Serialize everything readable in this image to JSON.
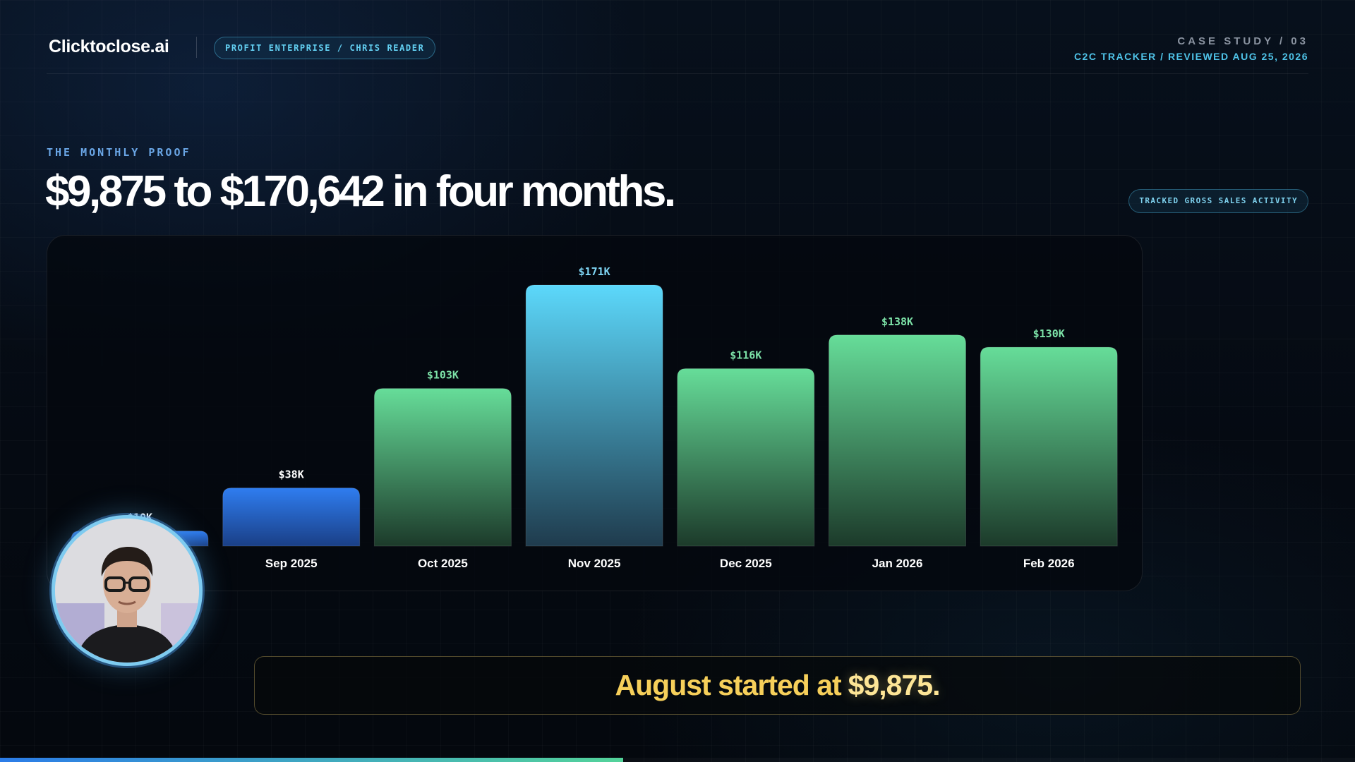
{
  "header": {
    "brand": "Clicktoclose.ai",
    "client_pill": "PROFIT ENTERPRISE / CHRIS READER",
    "case_label": "CASE STUDY / 03",
    "case_sub": "C2C TRACKER / REVIEWED AUG 25, 2026"
  },
  "hero": {
    "eyebrow": "THE MONTHLY PROOF",
    "headline": "$9,875 to $170,642 in four months.",
    "tag": "TRACKED GROSS SALES ACTIVITY"
  },
  "chart_data": {
    "type": "bar",
    "categories": [
      "",
      "Sep 2025",
      "Oct 2025",
      "Nov 2025",
      "Dec 2025",
      "Jan 2026",
      "Feb 2026"
    ],
    "values": [
      9875,
      38000,
      103000,
      170642,
      116000,
      138000,
      130000
    ],
    "value_labels": [
      "$10K",
      "$38K",
      "$103K",
      "$171K",
      "$116K",
      "$138K",
      "$130K"
    ],
    "bar_styles": [
      "blue",
      "blue",
      "green",
      "cyan",
      "green",
      "green",
      "green"
    ],
    "ylim": [
      0,
      170642
    ],
    "grid": false,
    "colors": {
      "blue_top": "#2f7df0",
      "blue_bottom": "#1a3f86",
      "green_top": "#66dd99",
      "green_bottom": "#1c3a2a",
      "cyan_top": "#5cd8fb",
      "cyan_bottom": "#1f3b4d",
      "label_blue": "#ffffff",
      "label_green": "#7de3a8",
      "label_cyan": "#7fd6f5"
    }
  },
  "callout": {
    "text": "August started at",
    "amount": "$9,875."
  },
  "progress": {
    "fraction": 0.46
  },
  "avatar": {
    "icon": "presenter-avatar"
  }
}
